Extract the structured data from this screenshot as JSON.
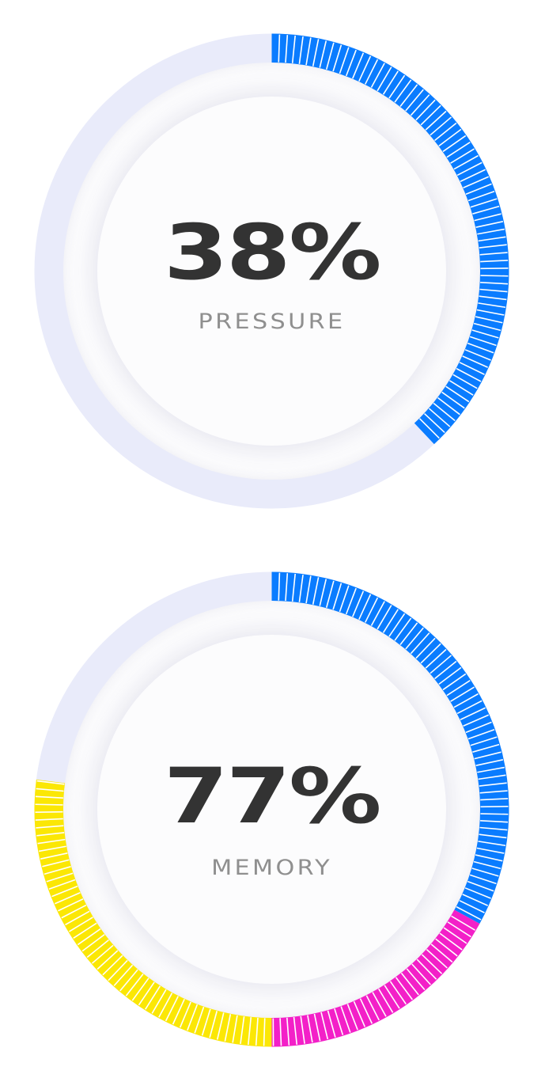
{
  "colors": {
    "track": "#e9ebfa",
    "tick_divider": "#ffffff",
    "value_text": "#333333",
    "label_text": "#8f8f8f"
  },
  "gauges": [
    {
      "id": "pressure",
      "value_text": "38%",
      "label": "PRESSURE",
      "percent": 38,
      "segments": [
        {
          "fraction": 0.38,
          "color": "#0a7cff"
        }
      ]
    },
    {
      "id": "memory",
      "value_text": "77%",
      "label": "MEMORY",
      "percent": 77,
      "segments": [
        {
          "fraction": 0.33,
          "color": "#0a7cff"
        },
        {
          "fraction": 0.17,
          "color": "#f320c8"
        },
        {
          "fraction": 0.27,
          "color": "#fbe705"
        }
      ]
    }
  ]
}
